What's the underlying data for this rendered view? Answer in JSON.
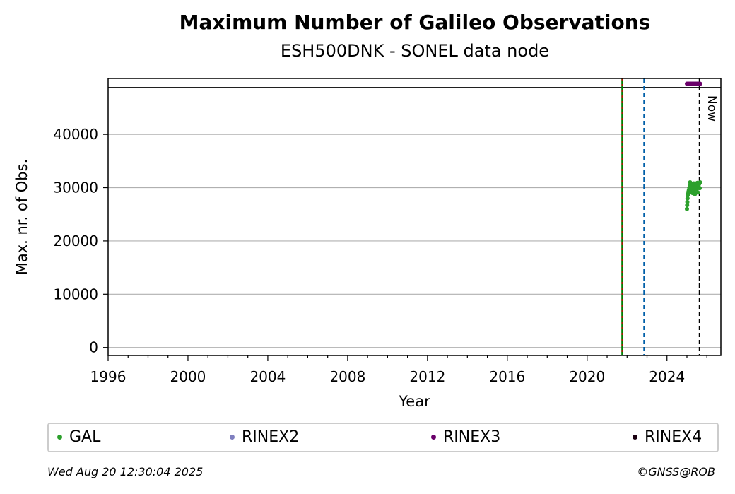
{
  "chart_data": {
    "type": "scatter",
    "title": "Maximum Number of Galileo Observations",
    "subtitle": "ESH500DNK - SONEL data node",
    "xlabel": "Year",
    "ylabel": "Max. nr. of Obs.",
    "xlim": [
      1996,
      2026.7
    ],
    "ylim": [
      -1500,
      50500
    ],
    "x_ticks": [
      1996,
      2000,
      2004,
      2008,
      2012,
      2016,
      2020,
      2024
    ],
    "y_ticks": [
      0,
      10000,
      20000,
      30000,
      40000
    ],
    "grid": "horizontal",
    "series": [
      {
        "name": "GAL",
        "color": "#2ca02c",
        "points": [
          [
            2025.0,
            26000
          ],
          [
            2025.01,
            26700
          ],
          [
            2025.02,
            27300
          ],
          [
            2025.03,
            28000
          ],
          [
            2025.04,
            28600
          ],
          [
            2025.06,
            28900
          ],
          [
            2025.08,
            29300
          ],
          [
            2025.1,
            29600
          ],
          [
            2025.12,
            30000
          ],
          [
            2025.14,
            30400
          ],
          [
            2025.16,
            31000
          ],
          [
            2025.19,
            29200
          ],
          [
            2025.22,
            29800
          ],
          [
            2025.25,
            30500
          ],
          [
            2025.28,
            29000
          ],
          [
            2025.31,
            30200
          ],
          [
            2025.34,
            30800
          ],
          [
            2025.37,
            29500
          ],
          [
            2025.4,
            28800
          ],
          [
            2025.43,
            30100
          ],
          [
            2025.46,
            30600
          ],
          [
            2025.49,
            29700
          ],
          [
            2025.52,
            30900
          ],
          [
            2025.55,
            29100
          ],
          [
            2025.58,
            30300
          ],
          [
            2025.61,
            30700
          ],
          [
            2025.64,
            29900
          ],
          [
            2025.66,
            31000
          ]
        ]
      },
      {
        "name": "RINEX2",
        "color": "#7f7fbf",
        "points": []
      },
      {
        "name": "RINEX3",
        "color": "#6a006a",
        "points": [
          [
            2025.0,
            49500
          ],
          [
            2025.05,
            49500
          ],
          [
            2025.1,
            49500
          ],
          [
            2025.15,
            49500
          ],
          [
            2025.2,
            49500
          ],
          [
            2025.25,
            49500
          ],
          [
            2025.3,
            49500
          ],
          [
            2025.35,
            49500
          ],
          [
            2025.4,
            49500
          ],
          [
            2025.45,
            49500
          ],
          [
            2025.5,
            49500
          ],
          [
            2025.55,
            49500
          ],
          [
            2025.6,
            49500
          ],
          [
            2025.66,
            49500
          ]
        ]
      },
      {
        "name": "RINEX4",
        "color": "#1a0010",
        "points": []
      }
    ],
    "reference_lines": [
      {
        "x": 2021.75,
        "colors": [
          "#008000",
          "#cc0000"
        ],
        "style": "dashed"
      },
      {
        "x": 2022.85,
        "colors": [
          "#005fa8"
        ],
        "style": "dashed"
      },
      {
        "x": 2025.63,
        "colors": [
          "#000000"
        ],
        "style": "dashed",
        "label": "Now"
      }
    ],
    "upper_band_y": 48800,
    "legend_position": "bottom"
  },
  "footer": {
    "timestamp": "Wed Aug 20 12:30:04 2025",
    "credit": "©GNSS@ROB"
  }
}
